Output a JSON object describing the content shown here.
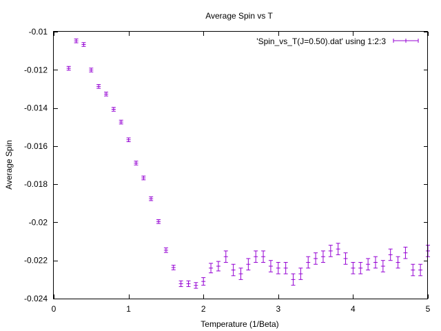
{
  "chart_data": {
    "type": "scatter",
    "title": "Average Spin vs T",
    "xlabel": "Temperature (1/Beta)",
    "ylabel": "Average Spin",
    "xlim": [
      0,
      5
    ],
    "ylim": [
      -0.024,
      -0.01
    ],
    "xticks": [
      0,
      1,
      2,
      3,
      4,
      5
    ],
    "xtick_labels": [
      "0",
      "1",
      "2",
      "3",
      "4",
      "5"
    ],
    "yticks": [
      -0.024,
      -0.022,
      -0.02,
      -0.018,
      -0.016,
      -0.014,
      -0.012,
      -0.01
    ],
    "ytick_labels": [
      "-0.024",
      "-0.022",
      "-0.02",
      "-0.018",
      "-0.016",
      "-0.014",
      "-0.012",
      "-0.01"
    ],
    "grid": false,
    "legend_position": "top-right",
    "series": [
      {
        "name": "'Spin_vs_T(J=0.50).dat' using 1:2:3",
        "color": "#9400d3",
        "x": [
          0.2,
          0.3,
          0.4,
          0.5,
          0.6,
          0.7,
          0.8,
          0.9,
          1.0,
          1.1,
          1.2,
          1.3,
          1.4,
          1.5,
          1.6,
          1.7,
          1.8,
          1.9,
          2.0,
          2.1,
          2.2,
          2.3,
          2.4,
          2.5,
          2.6,
          2.7,
          2.8,
          2.9,
          3.0,
          3.1,
          3.2,
          3.3,
          3.4,
          3.5,
          3.6,
          3.7,
          3.8,
          3.9,
          4.0,
          4.1,
          4.2,
          4.3,
          4.4,
          4.5,
          4.6,
          4.7,
          4.8,
          4.9,
          5.0
        ],
        "y": [
          -0.01192,
          -0.01048,
          -0.01067,
          -0.01201,
          -0.01287,
          -0.01327,
          -0.01407,
          -0.01474,
          -0.01567,
          -0.01689,
          -0.01767,
          -0.01876,
          -0.01996,
          -0.02146,
          -0.02237,
          -0.02322,
          -0.02322,
          -0.02331,
          -0.0231,
          -0.0224,
          -0.0223,
          -0.0218,
          -0.0225,
          -0.0227,
          -0.0222,
          -0.0218,
          -0.0218,
          -0.0223,
          -0.0224,
          -0.0224,
          -0.023,
          -0.0227,
          -0.0221,
          -0.0219,
          -0.0218,
          -0.0215,
          -0.0214,
          -0.0219,
          -0.0224,
          -0.0224,
          -0.0222,
          -0.0221,
          -0.0223,
          -0.0217,
          -0.0221,
          -0.0216,
          -0.0225,
          -0.0225,
          -0.0215
        ],
        "err": [
          0.0001,
          0.0001,
          0.0001,
          0.0001,
          0.0001,
          0.0001,
          0.0001,
          0.0001,
          0.0001,
          0.0001,
          0.0001,
          0.0001,
          0.0001,
          0.00012,
          0.00012,
          0.00015,
          0.00015,
          0.00015,
          0.0002,
          0.00025,
          0.00025,
          0.0003,
          0.0003,
          0.0003,
          0.0003,
          0.0003,
          0.0003,
          0.0003,
          0.0003,
          0.0003,
          0.0003,
          0.0003,
          0.0003,
          0.0003,
          0.0003,
          0.0003,
          0.0003,
          0.0003,
          0.0003,
          0.0003,
          0.0003,
          0.0003,
          0.0003,
          0.0003,
          0.0003,
          0.0003,
          0.0003,
          0.0003,
          0.0003
        ]
      }
    ]
  }
}
